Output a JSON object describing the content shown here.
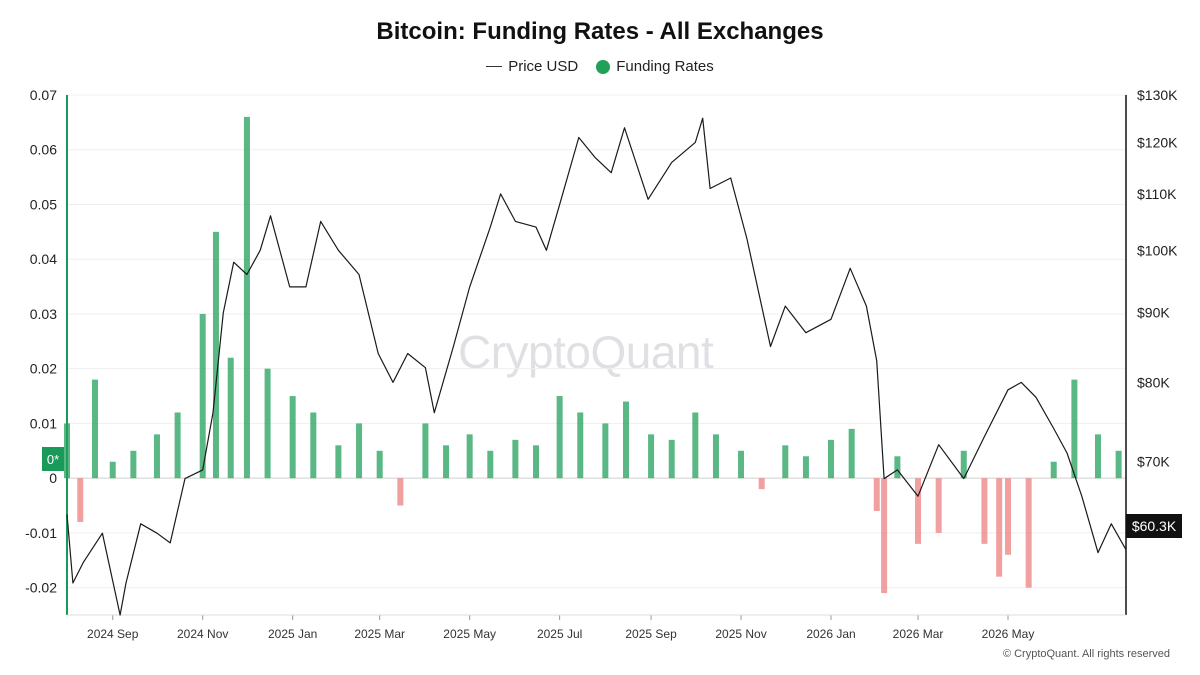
{
  "colors": {
    "positive": "#22a05a",
    "negative": "#ee7f7f",
    "price_line": "#1a1a1a",
    "left_axis": "#1a9a5a",
    "grid": "#efefef"
  },
  "chart_data": {
    "type": "bar",
    "title": "Bitcoin: Funding Rates - All Exchanges",
    "legend": [
      {
        "name": "Price USD",
        "marker": "line"
      },
      {
        "name": "Funding Rates",
        "marker": "dot"
      }
    ],
    "legend_placement": "top-center",
    "grid": true,
    "x_ticks": [
      "2024 Sep",
      "2024 Nov",
      "2025 Jan",
      "2025 Mar",
      "2025 May",
      "2025 Jul",
      "2025 Sep",
      "2025 Nov",
      "2026 Jan",
      "2026 Mar",
      "2026 May"
    ],
    "x_range": [
      "2024-08-01",
      "2026-07-20"
    ],
    "y_left": {
      "label": "",
      "ticks": [
        "0.07",
        "0.06",
        "0.05",
        "0.04",
        "0.03",
        "0.02",
        "0.01",
        "0",
        "-0.01",
        "-0.02"
      ],
      "ylim": [
        -0.025,
        0.07
      ],
      "zero_badge": "0*"
    },
    "y_right": {
      "label": "",
      "ticks": [
        "$130K",
        "$120K",
        "$110K",
        "$100K",
        "$90K",
        "$80K",
        "$70K"
      ],
      "tick_values": [
        130000,
        120000,
        110000,
        100000,
        90000,
        80000,
        70000
      ],
      "scale": "log",
      "ylim": [
        54000,
        130000
      ],
      "last_value_label": "$60.3K"
    },
    "series": [
      {
        "name": "Funding Rates",
        "kind": "bar",
        "x": [
          "2024-08-01",
          "2024-08-10",
          "2024-08-20",
          "2024-09-01",
          "2024-09-15",
          "2024-10-01",
          "2024-10-15",
          "2024-11-01",
          "2024-11-10",
          "2024-11-20",
          "2024-12-01",
          "2024-12-15",
          "2025-01-01",
          "2025-01-15",
          "2025-02-01",
          "2025-02-15",
          "2025-03-01",
          "2025-03-15",
          "2025-04-01",
          "2025-04-15",
          "2025-05-01",
          "2025-05-15",
          "2025-06-01",
          "2025-06-15",
          "2025-07-01",
          "2025-07-15",
          "2025-08-01",
          "2025-08-15",
          "2025-09-01",
          "2025-09-15",
          "2025-10-01",
          "2025-10-15",
          "2025-11-01",
          "2025-11-15",
          "2025-12-01",
          "2025-12-15",
          "2026-01-01",
          "2026-01-15",
          "2026-02-01",
          "2026-02-06",
          "2026-02-15",
          "2026-03-01",
          "2026-03-15",
          "2026-04-01",
          "2026-04-15",
          "2026-04-25",
          "2026-05-01",
          "2026-05-15",
          "2026-06-01",
          "2026-06-15",
          "2026-07-01",
          "2026-07-15"
        ],
        "values": [
          0.01,
          -0.008,
          0.018,
          0.003,
          0.005,
          0.008,
          0.012,
          0.03,
          0.045,
          0.022,
          0.066,
          0.02,
          0.015,
          0.012,
          0.006,
          0.01,
          0.005,
          -0.005,
          0.01,
          0.006,
          0.008,
          0.005,
          0.007,
          0.006,
          0.015,
          0.012,
          0.01,
          0.014,
          0.008,
          0.007,
          0.012,
          0.008,
          0.005,
          -0.002,
          0.006,
          0.004,
          0.007,
          0.009,
          -0.006,
          -0.021,
          0.004,
          -0.012,
          -0.01,
          0.005,
          -0.012,
          -0.018,
          -0.014,
          -0.02,
          0.003,
          0.018,
          0.008,
          0.005
        ]
      },
      {
        "name": "Price USD",
        "kind": "line",
        "axis": "right",
        "x": [
          "2024-08-01",
          "2024-08-05",
          "2024-08-12",
          "2024-08-25",
          "2024-09-06",
          "2024-09-10",
          "2024-09-20",
          "2024-10-01",
          "2024-10-10",
          "2024-10-20",
          "2024-11-01",
          "2024-11-08",
          "2024-11-15",
          "2024-11-22",
          "2024-12-01",
          "2024-12-10",
          "2024-12-17",
          "2024-12-30",
          "2025-01-10",
          "2025-01-20",
          "2025-02-01",
          "2025-02-15",
          "2025-02-28",
          "2025-03-10",
          "2025-03-20",
          "2025-04-01",
          "2025-04-07",
          "2025-04-20",
          "2025-05-01",
          "2025-05-15",
          "2025-05-22",
          "2025-06-01",
          "2025-06-15",
          "2025-06-22",
          "2025-07-01",
          "2025-07-14",
          "2025-07-25",
          "2025-08-05",
          "2025-08-14",
          "2025-08-30",
          "2025-09-15",
          "2025-10-01",
          "2025-10-06",
          "2025-10-11",
          "2025-10-25",
          "2025-11-05",
          "2025-11-21",
          "2025-12-01",
          "2025-12-15",
          "2026-01-01",
          "2026-01-14",
          "2026-01-25",
          "2026-02-01",
          "2026-02-06",
          "2026-02-15",
          "2026-03-01",
          "2026-03-15",
          "2026-04-01",
          "2026-04-15",
          "2026-05-01",
          "2026-05-10",
          "2026-05-20",
          "2026-06-01",
          "2026-06-10",
          "2026-06-20",
          "2026-07-01",
          "2026-07-10",
          "2026-07-20"
        ],
        "values": [
          64000,
          57000,
          59000,
          62000,
          54000,
          57000,
          63000,
          62000,
          61000,
          68000,
          69000,
          76000,
          90000,
          98000,
          96000,
          100000,
          106000,
          94000,
          94000,
          105000,
          100000,
          96000,
          84000,
          80000,
          84000,
          82000,
          76000,
          85000,
          94000,
          104000,
          110000,
          105000,
          104000,
          100000,
          108000,
          121000,
          117000,
          114000,
          123000,
          109000,
          116000,
          120000,
          125000,
          111000,
          113000,
          102000,
          85000,
          91000,
          87000,
          89000,
          97000,
          91000,
          83000,
          68000,
          69000,
          66000,
          72000,
          68000,
          73000,
          79000,
          80000,
          78000,
          74000,
          71000,
          66000,
          60000,
          63000,
          60300
        ]
      }
    ]
  },
  "footer": {
    "copyright": "© CryptoQuant. All rights reserved",
    "watermark": "CryptoQuant"
  }
}
